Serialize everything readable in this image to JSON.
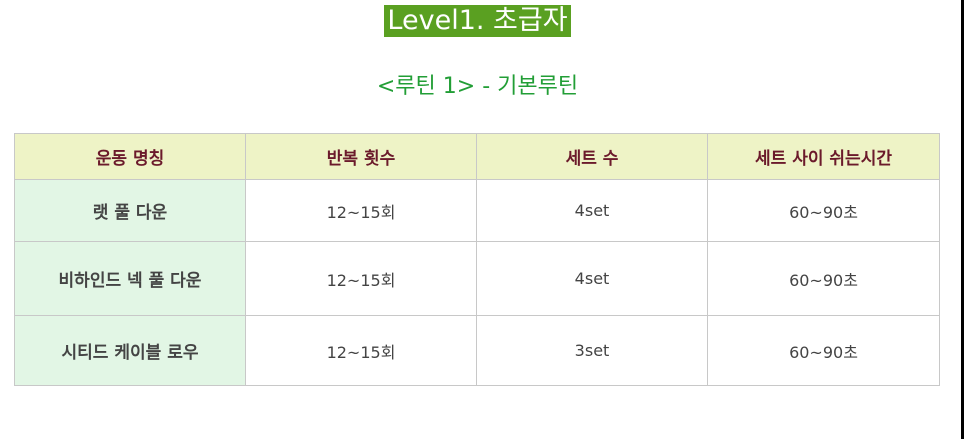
{
  "title": "Level1. 초급자",
  "subtitle": "<루틴 1> - 기본루틴",
  "table": {
    "headers": [
      "운동 명칭",
      "반복 횟수",
      "세트 수",
      "세트 사이 쉬는시간"
    ],
    "rows": [
      [
        "랫 풀 다운",
        "12~15회",
        "4set",
        "60~90초"
      ],
      [
        "비하인드 넥 풀 다운",
        "12~15회",
        "4set",
        "60~90초"
      ],
      [
        "시티드 케이블 로우",
        "12~15회",
        "3set",
        "60~90초"
      ]
    ]
  },
  "colors": {
    "title_bg": "#5aa021",
    "subtitle_text": "#229e36",
    "header_bg": "#eef3c6",
    "header_text": "#6b1a2b",
    "name_cell_bg": "#e2f6e5"
  }
}
